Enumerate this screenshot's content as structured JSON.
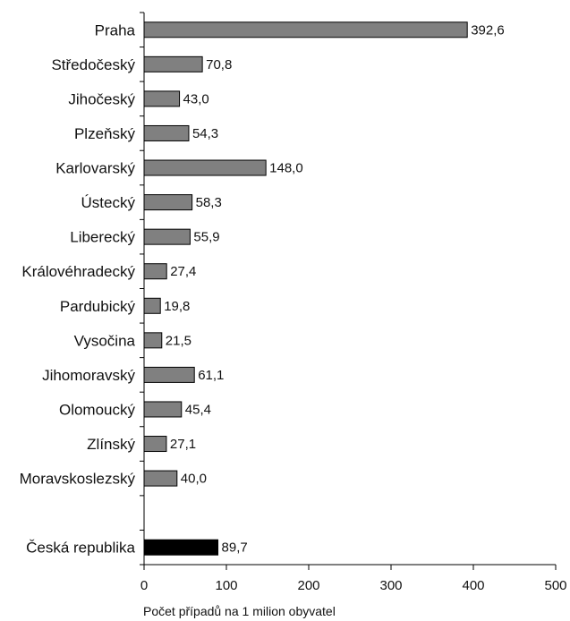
{
  "chart_data": {
    "type": "bar",
    "orientation": "horizontal",
    "categories": [
      "Praha",
      "Středočeský",
      "Jihočeský",
      "Plzeňský",
      "Karlovarský",
      "Ústecký",
      "Liberecký",
      "Královéhradecký",
      "Pardubický",
      "Vysočina",
      "Jihomoravský",
      "Olomoucký",
      "Zlínský",
      "Moravskoslezský",
      "",
      "Česká republika"
    ],
    "values": [
      392.6,
      70.8,
      43.0,
      54.3,
      148.0,
      58.3,
      55.9,
      27.4,
      19.8,
      21.5,
      61.1,
      45.4,
      27.1,
      40.0,
      null,
      89.7
    ],
    "value_labels": [
      "392,6",
      "70,8",
      "43,0",
      "54,3",
      "148,0",
      "58,3",
      "55,9",
      "27,4",
      "19,8",
      "21,5",
      "61,1",
      "45,4",
      "27,1",
      "40,0",
      "",
      "89,7"
    ],
    "xlabel": "Počet případů na 1 milion obyvatel",
    "xlim": [
      0,
      500
    ],
    "xticks": [
      0,
      100,
      200,
      300,
      400,
      500
    ],
    "grid": false,
    "colors": {
      "bar": "#808080",
      "highlight": "#000000",
      "edge": "#000000"
    },
    "highlight_category": "Česká republika"
  }
}
